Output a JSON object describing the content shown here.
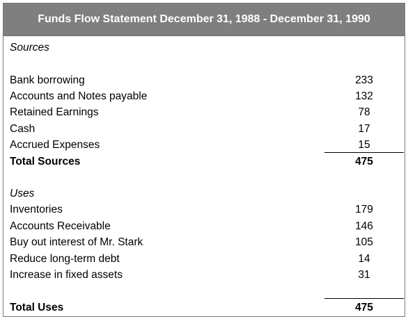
{
  "statement": {
    "title": "Funds Flow Statement December 31, 1988 - December 31, 1990",
    "sources": {
      "heading": "Sources",
      "items": [
        {
          "label": "Bank borrowing",
          "value": "233"
        },
        {
          "label": "Accounts and Notes payable",
          "value": "132"
        },
        {
          "label": "Retained Earnings",
          "value": "78"
        },
        {
          "label": "Cash",
          "value": "17"
        },
        {
          "label": "Accrued Expenses",
          "value": "15"
        }
      ],
      "total_label": "Total Sources",
      "total_value": "475"
    },
    "uses": {
      "heading": "Uses",
      "items": [
        {
          "label": "Inventories",
          "value": "179"
        },
        {
          "label": "Accounts Receivable",
          "value": "146"
        },
        {
          "label": "Buy out interest of Mr. Stark",
          "value": "105"
        },
        {
          "label": "Reduce long-term debt",
          "value": "14"
        },
        {
          "label": "Increase in fixed assets",
          "value": "31"
        }
      ],
      "total_label": "Total Uses",
      "total_value": "475"
    }
  }
}
